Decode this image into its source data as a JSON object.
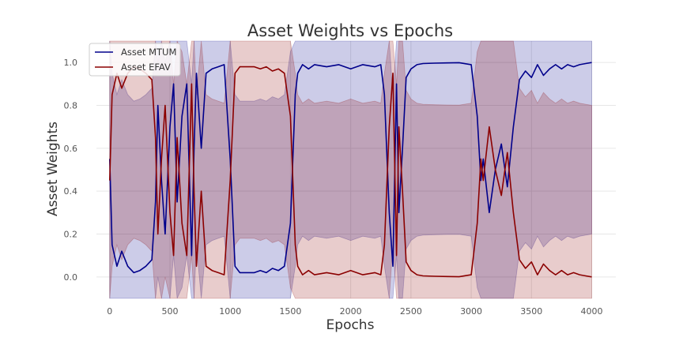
{
  "chart_data": {
    "type": "line",
    "title": "Asset Weights vs Epochs",
    "xlabel": "Epochs",
    "ylabel": "Asset Weights",
    "xlim": [
      -110,
      4200
    ],
    "ylim": [
      -0.1,
      1.1
    ],
    "xticks": [
      0,
      500,
      1000,
      1500,
      2000,
      2500,
      3000,
      3500,
      4000
    ],
    "yticks": [
      0.0,
      0.2,
      0.4,
      0.6,
      0.8,
      1.0
    ],
    "ytick_labels": [
      "0.0",
      "0.2",
      "0.4",
      "0.6",
      "0.8",
      "1.0"
    ],
    "grid": true,
    "legend_position": "top-left",
    "x": [
      0,
      20,
      60,
      100,
      150,
      200,
      250,
      300,
      350,
      380,
      400,
      430,
      460,
      500,
      530,
      560,
      600,
      640,
      680,
      700,
      720,
      760,
      800,
      850,
      900,
      950,
      1000,
      1040,
      1080,
      1150,
      1200,
      1250,
      1300,
      1350,
      1400,
      1450,
      1500,
      1540,
      1560,
      1600,
      1650,
      1700,
      1800,
      1900,
      2000,
      2100,
      2200,
      2250,
      2280,
      2320,
      2350,
      2380,
      2400,
      2430,
      2460,
      2500,
      2550,
      2600,
      2700,
      2800,
      2900,
      3000,
      3050,
      3080,
      3100,
      3150,
      3200,
      3250,
      3300,
      3350,
      3400,
      3450,
      3500,
      3550,
      3600,
      3650,
      3700,
      3750,
      3800,
      3850,
      3900,
      3950,
      4000
    ],
    "series": [
      {
        "name": "Asset MTUM",
        "color": "#00008b",
        "band_color": "#00008b",
        "values": [
          0.55,
          0.15,
          0.05,
          0.12,
          0.05,
          0.02,
          0.03,
          0.05,
          0.08,
          0.35,
          0.8,
          0.45,
          0.2,
          0.7,
          0.9,
          0.35,
          0.75,
          0.9,
          0.1,
          0.6,
          0.95,
          0.6,
          0.95,
          0.97,
          0.98,
          0.99,
          0.55,
          0.05,
          0.02,
          0.02,
          0.02,
          0.03,
          0.02,
          0.04,
          0.03,
          0.05,
          0.25,
          0.85,
          0.95,
          0.99,
          0.97,
          0.99,
          0.98,
          0.99,
          0.97,
          0.99,
          0.98,
          0.99,
          0.85,
          0.3,
          0.05,
          0.9,
          0.3,
          0.6,
          0.93,
          0.97,
          0.99,
          0.995,
          0.997,
          0.998,
          0.999,
          0.99,
          0.75,
          0.45,
          0.55,
          0.3,
          0.5,
          0.62,
          0.42,
          0.7,
          0.92,
          0.96,
          0.93,
          0.99,
          0.94,
          0.97,
          0.99,
          0.97,
          0.99,
          0.98,
          0.99,
          0.995,
          1.0
        ]
      },
      {
        "name": "Asset EFAV",
        "color": "#8b0000",
        "band_color": "#8b0000",
        "values": [
          0.45,
          0.85,
          0.95,
          0.88,
          0.95,
          0.98,
          0.97,
          0.95,
          0.92,
          0.65,
          0.2,
          0.55,
          0.8,
          0.3,
          0.1,
          0.65,
          0.25,
          0.1,
          0.9,
          0.4,
          0.05,
          0.4,
          0.05,
          0.03,
          0.02,
          0.01,
          0.45,
          0.95,
          0.98,
          0.98,
          0.98,
          0.97,
          0.98,
          0.96,
          0.97,
          0.95,
          0.75,
          0.15,
          0.05,
          0.01,
          0.03,
          0.01,
          0.02,
          0.01,
          0.03,
          0.01,
          0.02,
          0.01,
          0.15,
          0.7,
          0.95,
          0.1,
          0.7,
          0.4,
          0.07,
          0.03,
          0.01,
          0.005,
          0.003,
          0.002,
          0.001,
          0.01,
          0.25,
          0.55,
          0.45,
          0.7,
          0.5,
          0.38,
          0.58,
          0.3,
          0.08,
          0.04,
          0.07,
          0.01,
          0.06,
          0.03,
          0.01,
          0.03,
          0.01,
          0.02,
          0.01,
          0.005,
          0.0
        ]
      }
    ]
  }
}
